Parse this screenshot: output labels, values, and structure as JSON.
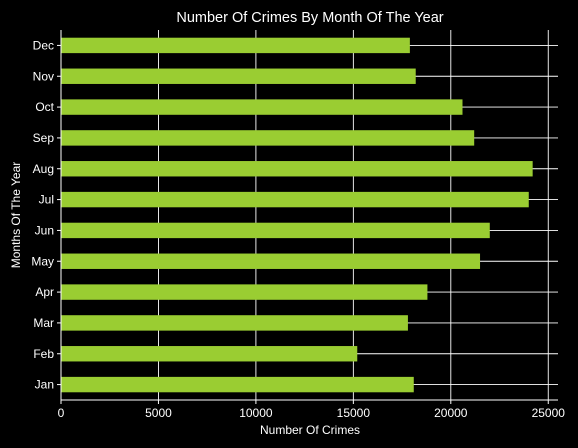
{
  "chart_data": {
    "type": "bar",
    "orientation": "horizontal",
    "title": "Number Of Crimes By Month Of The Year",
    "xlabel": "Number Of Crimes",
    "ylabel": "Months Of The Year",
    "categories": [
      "Jan",
      "Feb",
      "Mar",
      "Apr",
      "May",
      "Jun",
      "Jul",
      "Aug",
      "Sep",
      "Oct",
      "Nov",
      "Dec"
    ],
    "values": [
      18100,
      15200,
      17800,
      18800,
      21500,
      22000,
      24000,
      24200,
      21200,
      20600,
      18200,
      17900
    ],
    "xlim": [
      0,
      25500
    ],
    "xticks": [
      0,
      5000,
      10000,
      15000,
      20000,
      25000
    ],
    "xtick_labels": [
      "0",
      "5000",
      "10000",
      "15000",
      "20000",
      "25000"
    ],
    "grid": true,
    "colors": {
      "background": "#000000",
      "bar": "#9acd32",
      "grid": "#ffffff",
      "axis": "#ffffff",
      "text": "#ffffff"
    }
  }
}
